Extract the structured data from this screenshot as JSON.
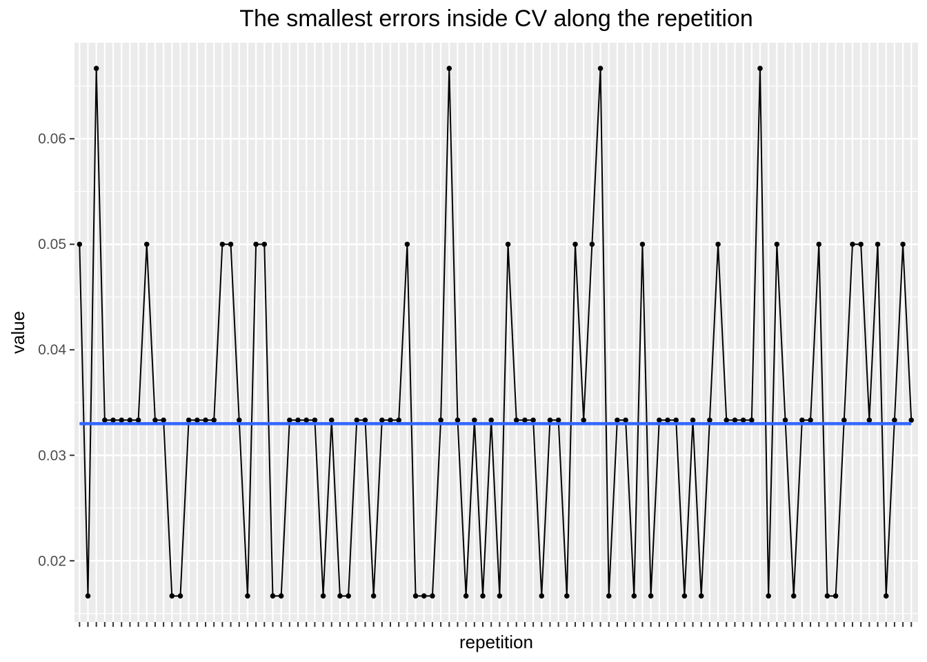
{
  "chart_data": {
    "type": "line",
    "title": "The smallest errors inside CV along the repetition",
    "xlabel": "repetition",
    "ylabel": "value",
    "x_ticks_labeled": false,
    "n_points": 100,
    "ylim": [
      0.0142,
      0.0691
    ],
    "y_ticks": [
      0.02,
      0.03,
      0.04,
      0.05,
      0.06
    ],
    "y_tick_labels": [
      "0.02",
      "0.03",
      "0.04",
      "0.05",
      "0.06"
    ],
    "grid": true,
    "series": [
      {
        "color": "#000000",
        "show_points": true,
        "values": [
          0.05,
          0.01667,
          0.06667,
          0.03333,
          0.03333,
          0.03333,
          0.03333,
          0.03333,
          0.05,
          0.03333,
          0.03333,
          0.01667,
          0.01667,
          0.03333,
          0.03333,
          0.03333,
          0.03333,
          0.05,
          0.05,
          0.03333,
          0.01667,
          0.05,
          0.05,
          0.01667,
          0.01667,
          0.03333,
          0.03333,
          0.03333,
          0.03333,
          0.01667,
          0.03333,
          0.01667,
          0.01667,
          0.03333,
          0.03333,
          0.01667,
          0.03333,
          0.03333,
          0.03333,
          0.05,
          0.01667,
          0.01667,
          0.01667,
          0.03333,
          0.06667,
          0.03333,
          0.01667,
          0.03333,
          0.01667,
          0.03333,
          0.01667,
          0.05,
          0.03333,
          0.03333,
          0.03333,
          0.01667,
          0.03333,
          0.03333,
          0.01667,
          0.05,
          0.03333,
          0.05,
          0.06667,
          0.01667,
          0.03333,
          0.03333,
          0.01667,
          0.05,
          0.01667,
          0.03333,
          0.03333,
          0.03333,
          0.01667,
          0.03333,
          0.01667,
          0.03333,
          0.05,
          0.03333,
          0.03333,
          0.03333,
          0.03333,
          0.06667,
          0.01667,
          0.05,
          0.03333,
          0.01667,
          0.03333,
          0.03333,
          0.05,
          0.01667,
          0.01667,
          0.03333,
          0.05,
          0.05,
          0.03333,
          0.05,
          0.01667,
          0.03333,
          0.05,
          0.03333
        ]
      },
      {
        "color": "#3366ff",
        "show_points": false,
        "values_constant": 0.033
      }
    ],
    "panel_background": "#ebebeb",
    "grid_color": "#ffffff"
  }
}
